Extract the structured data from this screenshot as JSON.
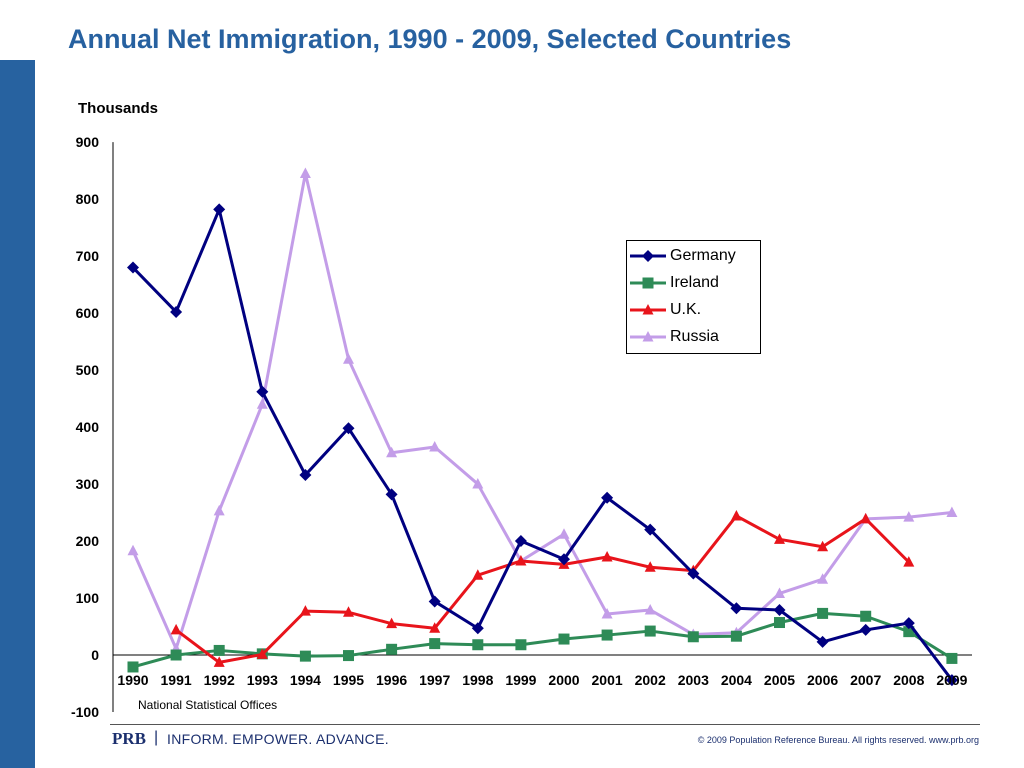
{
  "title": "Annual Net Immigration, 1990 - 2009, Selected Countries",
  "units_label": "Thousands",
  "source": "National Statistical Offices",
  "footer": {
    "brand": "PRB",
    "separator": "|",
    "tagline": "INFORM. EMPOWER. ADVANCE.",
    "copyright": "© 2009 Population Reference Bureau. All rights reserved. www.prb.org"
  },
  "colors": {
    "accent": "#2762a0",
    "title": "#2761a0"
  },
  "chart_data": {
    "type": "line",
    "title": "Annual Net Immigration, 1990 - 2009, Selected Countries",
    "ylabel": "Thousands",
    "xlabel": "",
    "ylim": [
      -100,
      900
    ],
    "yticks": [
      900,
      800,
      700,
      600,
      500,
      400,
      300,
      200,
      100,
      0,
      -100
    ],
    "categories": [
      "1990",
      "1991",
      "1992",
      "1993",
      "1994",
      "1995",
      "1996",
      "1997",
      "1998",
      "1999",
      "2000",
      "2001",
      "2002",
      "2003",
      "2004",
      "2005",
      "2006",
      "2007",
      "2008",
      "2009"
    ],
    "grid": false,
    "legend_position": "right",
    "series": [
      {
        "name": "Germany",
        "color": "#000080",
        "marker": "diamond",
        "values": [
          680,
          602,
          782,
          462,
          316,
          398,
          282,
          94,
          47,
          200,
          168,
          276,
          220,
          143,
          82,
          79,
          23,
          44,
          56,
          -44
        ]
      },
      {
        "name": "Ireland",
        "color": "#2e8b57",
        "marker": "square",
        "values": [
          -21,
          0,
          8,
          2,
          -2,
          -1,
          10,
          20,
          18,
          18,
          28,
          35,
          42,
          32,
          33,
          57,
          73,
          68,
          41,
          -6
        ]
      },
      {
        "name": "U.K.",
        "color": "#e8141b",
        "marker": "triangle",
        "values": [
          null,
          44,
          -13,
          1,
          77,
          75,
          55,
          47,
          140,
          165,
          159,
          172,
          154,
          148,
          244,
          203,
          190,
          239,
          163,
          null
        ]
      },
      {
        "name": "Russia",
        "color": "#c39de8",
        "marker": "triangle",
        "values": [
          183,
          11,
          253,
          440,
          845,
          519,
          355,
          365,
          300,
          165,
          212,
          72,
          79,
          36,
          39,
          108,
          133,
          239,
          242,
          250
        ]
      }
    ]
  }
}
